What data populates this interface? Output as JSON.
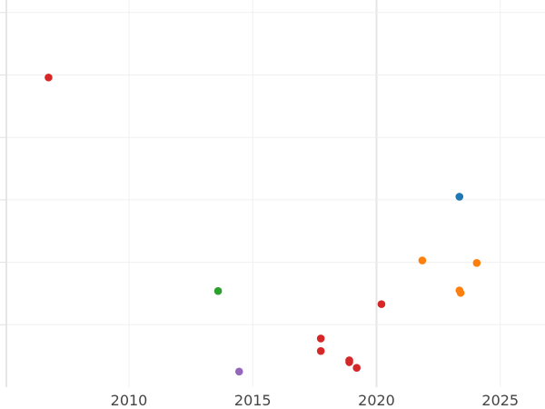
{
  "chart_data": {
    "type": "scatter",
    "title": "",
    "xlabel": "",
    "ylabel": "",
    "xlim": [
      2005,
      2027
    ],
    "ylim": [
      0,
      6
    ],
    "xticks": [
      2010,
      2015,
      2020,
      2025
    ],
    "xtick_labels": [
      "2010",
      "2015",
      "2020",
      "2025"
    ],
    "yticks": [
      0,
      1,
      2,
      3,
      4,
      5,
      6
    ],
    "ytick_labels": [
      "",
      "",
      "",
      "",
      "",
      "",
      ""
    ],
    "grid": true,
    "legend": "none",
    "series": [
      {
        "color": "#1f77b4",
        "points": [
          {
            "x": 2023.35,
            "y": 3.05
          }
        ]
      },
      {
        "color": "#ff7f0e",
        "points": [
          {
            "x": 2021.85,
            "y": 2.03
          },
          {
            "x": 2024.05,
            "y": 1.99
          },
          {
            "x": 2023.35,
            "y": 1.55
          },
          {
            "x": 2023.4,
            "y": 1.51
          }
        ]
      },
      {
        "color": "#2ca02c",
        "points": [
          {
            "x": 2013.6,
            "y": 1.54
          }
        ]
      },
      {
        "color": "#d62728",
        "points": [
          {
            "x": 2006.75,
            "y": 4.96
          },
          {
            "x": 2020.2,
            "y": 1.33
          },
          {
            "x": 2017.75,
            "y": 0.78
          },
          {
            "x": 2017.75,
            "y": 0.58
          },
          {
            "x": 2018.9,
            "y": 0.43
          },
          {
            "x": 2018.9,
            "y": 0.4
          },
          {
            "x": 2019.2,
            "y": 0.31
          }
        ]
      },
      {
        "color": "#9467bd",
        "points": [
          {
            "x": 2014.45,
            "y": 0.25
          }
        ]
      }
    ]
  }
}
